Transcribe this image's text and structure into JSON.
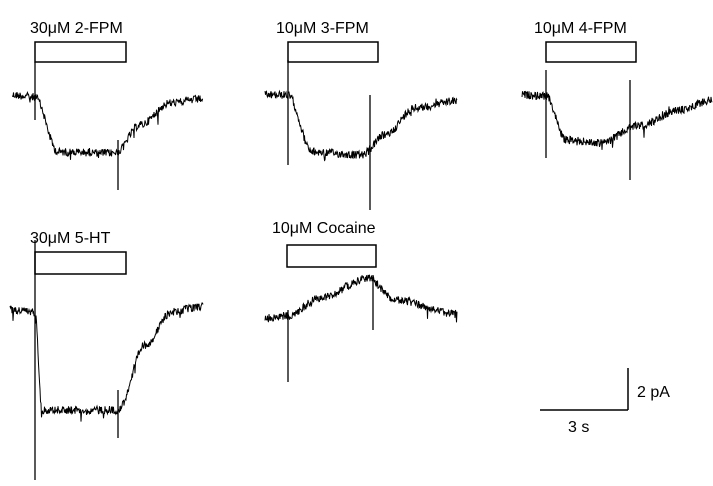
{
  "panels": [
    {
      "label": "30μM 2-FPM"
    },
    {
      "label": "10μM 3-FPM"
    },
    {
      "label": "10μM 4-FPM"
    },
    {
      "label": "30μM 5-HT"
    },
    {
      "label": "10μM Cocaine"
    }
  ],
  "scale_bar": {
    "y_label": "2 pA",
    "x_label": "3 s"
  }
}
